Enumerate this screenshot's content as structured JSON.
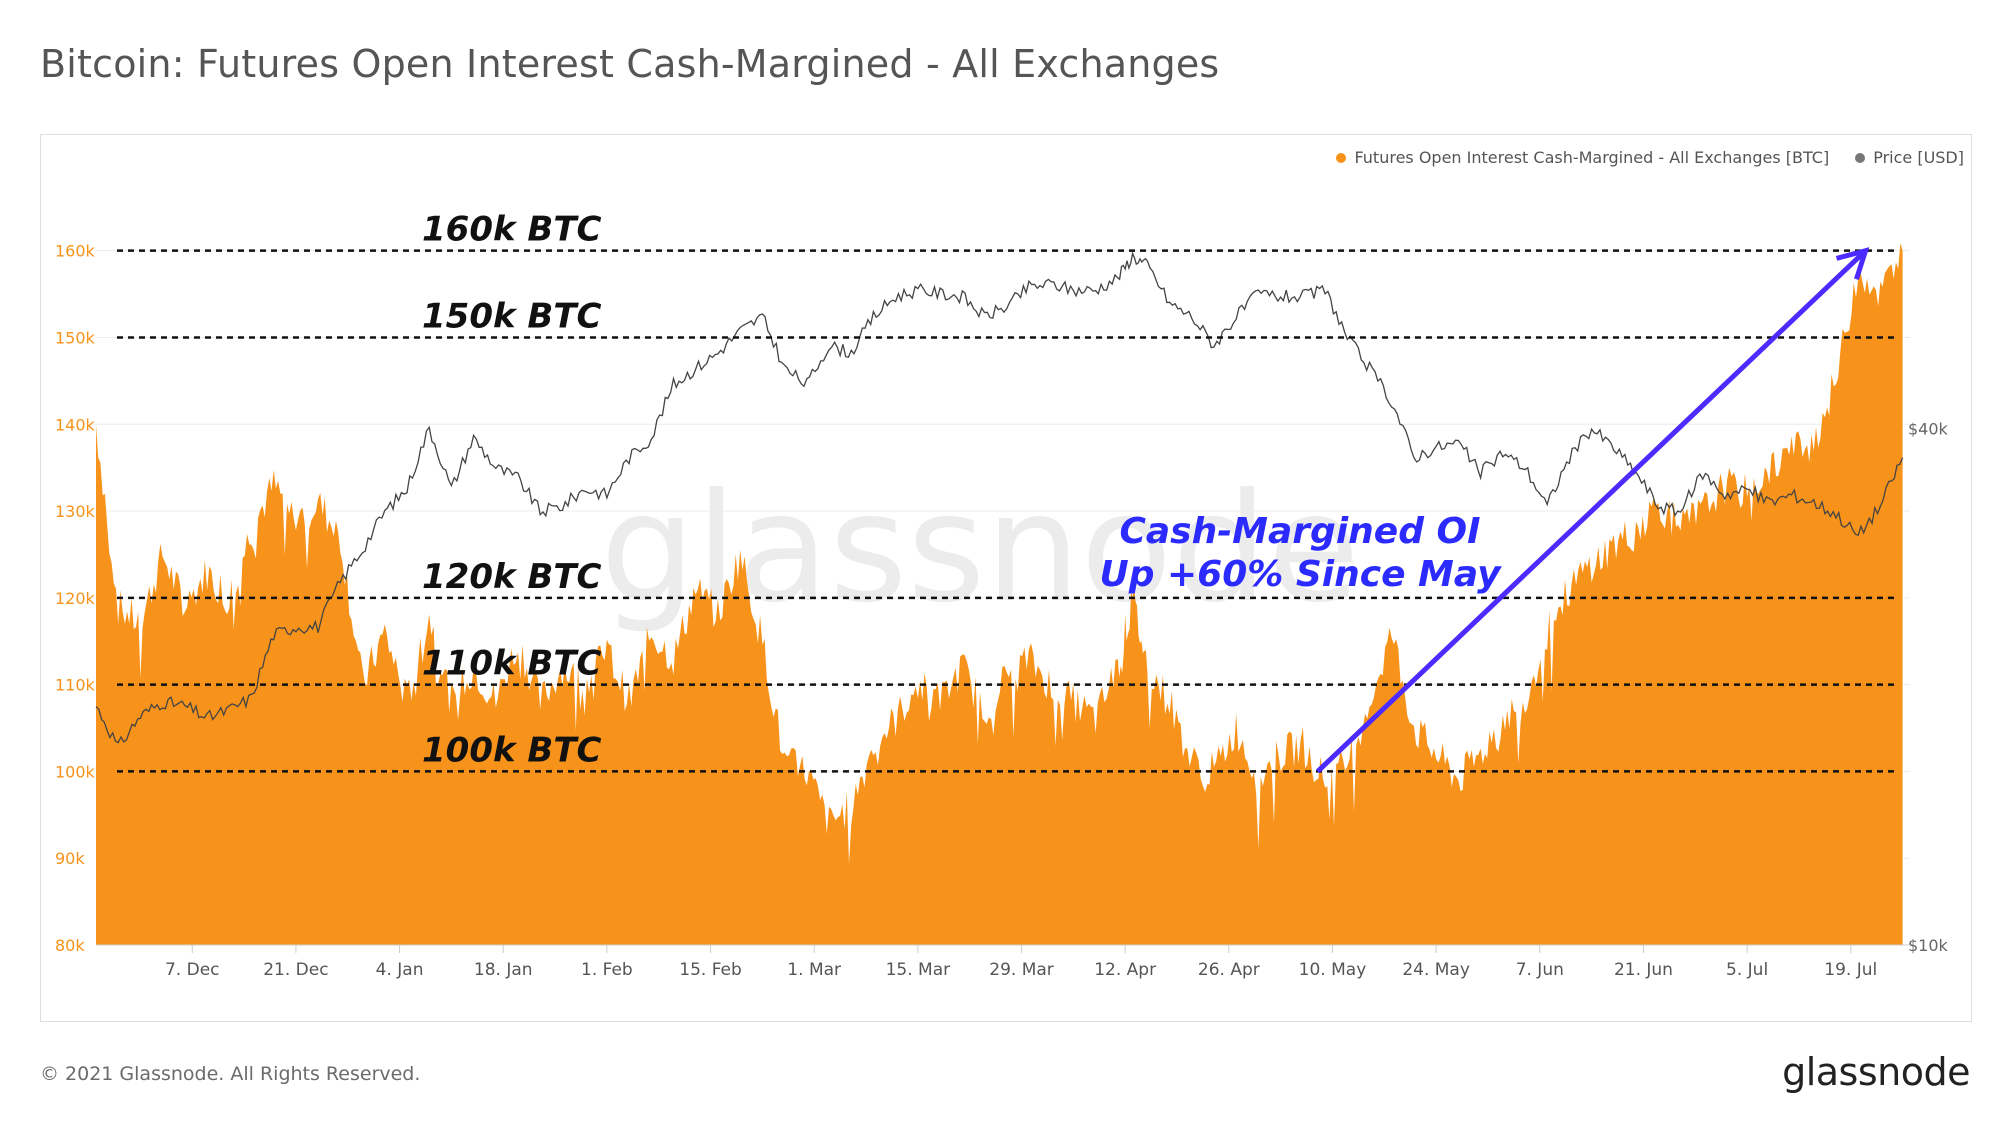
{
  "title": "Bitcoin: Futures Open Interest Cash-Margined - All Exchanges",
  "legend": {
    "oi_label": "Futures Open Interest Cash-Margined - All Exchanges [BTC]",
    "price_label": "Price [USD]",
    "oi_color": "#f7931a",
    "price_color": "#777777"
  },
  "watermark": "glassnode",
  "footer": {
    "copyright": "© 2021 Glassnode. All Rights Reserved.",
    "logo_text": "glassnode"
  },
  "chart_data": {
    "type": "area",
    "title": "Bitcoin: Futures Open Interest Cash-Margined - All Exchanges",
    "x_tick_labels": [
      "7. Dec",
      "21. Dec",
      "4. Jan",
      "18. Jan",
      "1. Feb",
      "15. Feb",
      "1. Mar",
      "15. Mar",
      "29. Mar",
      "12. Apr",
      "26. Apr",
      "10. May",
      "24. May",
      "7. Jun",
      "21. Jun",
      "5. Jul",
      "19. Jul"
    ],
    "x_range": [
      "2020-11-24",
      "2021-07-27"
    ],
    "y_left": {
      "ticks": [
        "80k",
        "90k",
        "100k",
        "110k",
        "120k",
        "130k",
        "140k",
        "150k",
        "160k"
      ],
      "range": [
        80000,
        161000
      ],
      "tick_color": "#f7931a"
    },
    "y_right": {
      "ticks": [
        "$10k",
        "$40k"
      ],
      "scale": "log",
      "range": [
        10000,
        66000
      ]
    },
    "grid": true,
    "legend_position": "top-right",
    "series": [
      {
        "name": "Futures Open Interest Cash-Margined - All Exchanges [BTC]",
        "axis": "left",
        "color": "#f7931a",
        "points": [
          [
            "2020-11-24",
            140000
          ],
          [
            "2020-11-27",
            119000
          ],
          [
            "2020-11-30",
            117000
          ],
          [
            "2020-12-03",
            125000
          ],
          [
            "2020-12-06",
            119000
          ],
          [
            "2020-12-09",
            123000
          ],
          [
            "2020-12-12",
            120000
          ],
          [
            "2020-12-15",
            128000
          ],
          [
            "2020-12-18",
            133000
          ],
          [
            "2020-12-21",
            129000
          ],
          [
            "2020-12-24",
            131000
          ],
          [
            "2020-12-27",
            127000
          ],
          [
            "2020-12-30",
            110000
          ],
          [
            "2021-01-02",
            116000
          ],
          [
            "2021-01-05",
            108000
          ],
          [
            "2021-01-08",
            118000
          ],
          [
            "2021-01-11",
            108000
          ],
          [
            "2021-01-14",
            112000
          ],
          [
            "2021-01-17",
            108000
          ],
          [
            "2021-01-20",
            115000
          ],
          [
            "2021-01-23",
            108000
          ],
          [
            "2021-01-26",
            112000
          ],
          [
            "2021-01-29",
            110000
          ],
          [
            "2021-02-01",
            114000
          ],
          [
            "2021-02-04",
            108000
          ],
          [
            "2021-02-07",
            116000
          ],
          [
            "2021-02-10",
            113000
          ],
          [
            "2021-02-13",
            121000
          ],
          [
            "2021-02-16",
            118000
          ],
          [
            "2021-02-19",
            125000
          ],
          [
            "2021-02-22",
            115000
          ],
          [
            "2021-02-25",
            101000
          ],
          [
            "2021-02-28",
            100000
          ],
          [
            "2021-03-03",
            94000
          ],
          [
            "2021-03-06",
            96000
          ],
          [
            "2021-03-09",
            103000
          ],
          [
            "2021-03-12",
            106000
          ],
          [
            "2021-03-15",
            110000
          ],
          [
            "2021-03-18",
            108000
          ],
          [
            "2021-03-21",
            112000
          ],
          [
            "2021-03-24",
            107000
          ],
          [
            "2021-03-27",
            111000
          ],
          [
            "2021-03-30",
            113000
          ],
          [
            "2021-04-02",
            110000
          ],
          [
            "2021-04-05",
            108000
          ],
          [
            "2021-04-08",
            106000
          ],
          [
            "2021-04-11",
            112000
          ],
          [
            "2021-04-13",
            120000
          ],
          [
            "2021-04-15",
            112000
          ],
          [
            "2021-04-18",
            108000
          ],
          [
            "2021-04-21",
            101000
          ],
          [
            "2021-04-24",
            100000
          ],
          [
            "2021-04-27",
            105000
          ],
          [
            "2021-04-30",
            99000
          ],
          [
            "2021-05-03",
            102000
          ],
          [
            "2021-05-06",
            103000
          ],
          [
            "2021-05-09",
            99000
          ],
          [
            "2021-05-12",
            101000
          ],
          [
            "2021-05-15",
            108000
          ],
          [
            "2021-05-18",
            116000
          ],
          [
            "2021-05-21",
            105000
          ],
          [
            "2021-05-24",
            102000
          ],
          [
            "2021-05-27",
            99000
          ],
          [
            "2021-05-30",
            102000
          ],
          [
            "2021-06-02",
            106000
          ],
          [
            "2021-06-05",
            108000
          ],
          [
            "2021-06-08",
            116000
          ],
          [
            "2021-06-11",
            121000
          ],
          [
            "2021-06-14",
            124000
          ],
          [
            "2021-06-17",
            126000
          ],
          [
            "2021-06-20",
            128000
          ],
          [
            "2021-06-23",
            131000
          ],
          [
            "2021-06-26",
            128000
          ],
          [
            "2021-06-29",
            130000
          ],
          [
            "2021-07-02",
            133000
          ],
          [
            "2021-07-05",
            132000
          ],
          [
            "2021-07-08",
            135000
          ],
          [
            "2021-07-11",
            137000
          ],
          [
            "2021-07-14",
            138000
          ],
          [
            "2021-07-17",
            145000
          ],
          [
            "2021-07-20",
            158000
          ],
          [
            "2021-07-23",
            155000
          ],
          [
            "2021-07-26",
            160000
          ]
        ]
      },
      {
        "name": "Price [USD]",
        "axis": "right",
        "color": "#555555",
        "points": [
          [
            "2020-11-24",
            19000
          ],
          [
            "2020-11-27",
            17000
          ],
          [
            "2020-11-30",
            18500
          ],
          [
            "2020-12-03",
            19200
          ],
          [
            "2020-12-06",
            19000
          ],
          [
            "2020-12-09",
            18400
          ],
          [
            "2020-12-12",
            18800
          ],
          [
            "2020-12-15",
            19400
          ],
          [
            "2020-12-18",
            23000
          ],
          [
            "2020-12-21",
            23500
          ],
          [
            "2020-12-24",
            23500
          ],
          [
            "2020-12-27",
            26500
          ],
          [
            "2020-12-30",
            28900
          ],
          [
            "2021-01-02",
            32000
          ],
          [
            "2021-01-05",
            34000
          ],
          [
            "2021-01-08",
            40000
          ],
          [
            "2021-01-11",
            34000
          ],
          [
            "2021-01-14",
            39000
          ],
          [
            "2021-01-17",
            36000
          ],
          [
            "2021-01-20",
            35000
          ],
          [
            "2021-01-23",
            32000
          ],
          [
            "2021-01-26",
            32500
          ],
          [
            "2021-01-29",
            34000
          ],
          [
            "2021-02-01",
            33500
          ],
          [
            "2021-02-04",
            37000
          ],
          [
            "2021-02-07",
            39000
          ],
          [
            "2021-02-10",
            45000
          ],
          [
            "2021-02-13",
            47000
          ],
          [
            "2021-02-16",
            49000
          ],
          [
            "2021-02-19",
            52000
          ],
          [
            "2021-02-22",
            54000
          ],
          [
            "2021-02-25",
            47000
          ],
          [
            "2021-02-28",
            45000
          ],
          [
            "2021-03-03",
            50000
          ],
          [
            "2021-03-06",
            49000
          ],
          [
            "2021-03-09",
            54000
          ],
          [
            "2021-03-12",
            57000
          ],
          [
            "2021-03-15",
            58000
          ],
          [
            "2021-03-18",
            57500
          ],
          [
            "2021-03-21",
            57000
          ],
          [
            "2021-03-24",
            54000
          ],
          [
            "2021-03-27",
            55500
          ],
          [
            "2021-03-30",
            58500
          ],
          [
            "2021-04-02",
            59000
          ],
          [
            "2021-04-05",
            58000
          ],
          [
            "2021-04-08",
            58000
          ],
          [
            "2021-04-11",
            60000
          ],
          [
            "2021-04-13",
            63500
          ],
          [
            "2021-04-15",
            62000
          ],
          [
            "2021-04-18",
            56000
          ],
          [
            "2021-04-21",
            54000
          ],
          [
            "2021-04-24",
            50000
          ],
          [
            "2021-04-27",
            54000
          ],
          [
            "2021-04-30",
            57500
          ],
          [
            "2021-05-03",
            57000
          ],
          [
            "2021-05-06",
            57000
          ],
          [
            "2021-05-09",
            58000
          ],
          [
            "2021-05-12",
            51000
          ],
          [
            "2021-05-15",
            47000
          ],
          [
            "2021-05-18",
            43000
          ],
          [
            "2021-05-21",
            37000
          ],
          [
            "2021-05-24",
            38000
          ],
          [
            "2021-05-27",
            38500
          ],
          [
            "2021-05-30",
            35500
          ],
          [
            "2021-06-02",
            37500
          ],
          [
            "2021-06-05",
            36000
          ],
          [
            "2021-06-08",
            32500
          ],
          [
            "2021-06-11",
            37000
          ],
          [
            "2021-06-14",
            40000
          ],
          [
            "2021-06-17",
            38000
          ],
          [
            "2021-06-20",
            35500
          ],
          [
            "2021-06-23",
            32500
          ],
          [
            "2021-06-26",
            32000
          ],
          [
            "2021-06-29",
            35500
          ],
          [
            "2021-07-02",
            33500
          ],
          [
            "2021-07-05",
            34000
          ],
          [
            "2021-07-08",
            32800
          ],
          [
            "2021-07-11",
            33500
          ],
          [
            "2021-07-14",
            32800
          ],
          [
            "2021-07-17",
            31800
          ],
          [
            "2021-07-20",
            30000
          ],
          [
            "2021-07-23",
            32500
          ],
          [
            "2021-07-26",
            37000
          ]
        ]
      }
    ],
    "reference_lines": [
      {
        "value": 160000,
        "label": "160k BTC"
      },
      {
        "value": 150000,
        "label": "150k BTC"
      },
      {
        "value": 120000,
        "label": "120k BTC"
      },
      {
        "value": 110000,
        "label": "110k BTC"
      },
      {
        "value": 100000,
        "label": "100k BTC"
      }
    ],
    "annotation": {
      "lines": [
        "Cash-Margined OI",
        "Up +60% Since May"
      ],
      "color": "#2b2bff",
      "arrow_from": [
        "2021-05-08",
        100000
      ],
      "arrow_to": [
        "2021-07-21",
        160000
      ]
    }
  }
}
